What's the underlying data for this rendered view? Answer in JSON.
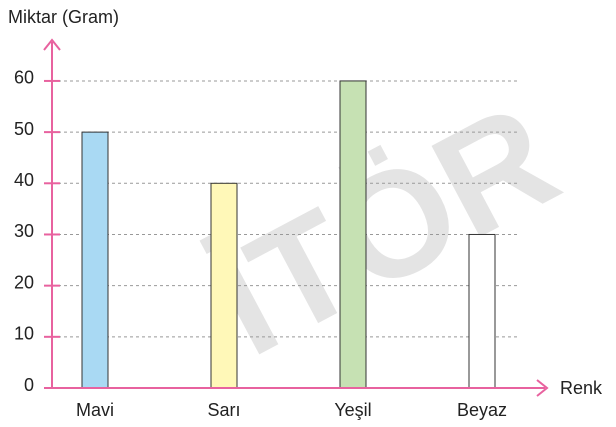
{
  "chart_data": {
    "type": "bar",
    "y_label": "Miktar (Gram)",
    "x_label": "Renk",
    "categories": [
      "Mavi",
      "Sarı",
      "Yeşil",
      "Beyaz"
    ],
    "values": [
      50,
      40,
      60,
      30
    ],
    "colors": [
      "#a9d9f3",
      "#fff8b8",
      "#c6e1b3",
      "#ffffff"
    ],
    "ylim": [
      0,
      68
    ],
    "yticks": [
      0,
      10,
      20,
      30,
      40,
      50,
      60
    ],
    "grid": true,
    "watermark": "İTÖR"
  }
}
